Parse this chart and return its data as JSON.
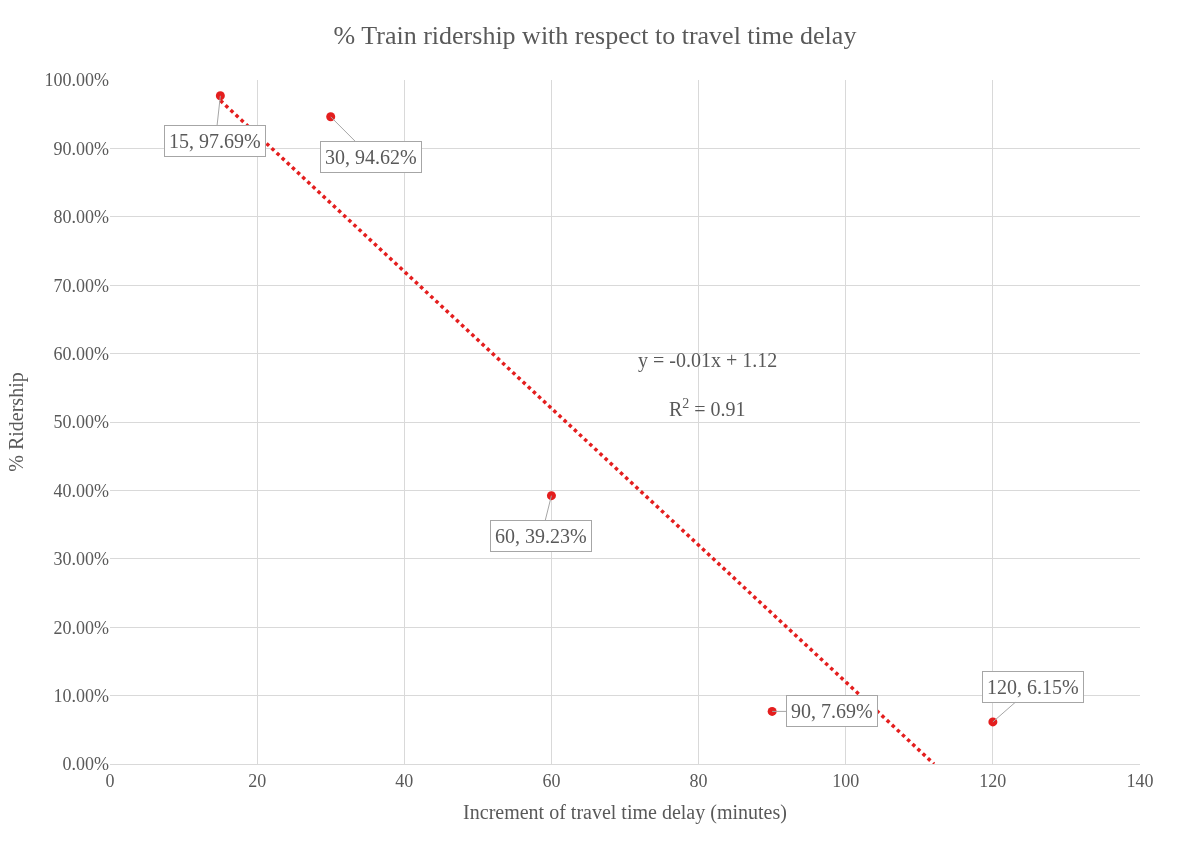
{
  "chart_data": {
    "type": "scatter",
    "title": "% Train ridership with respect to travel time delay",
    "xlabel": "Increment of travel time delay (minutes)",
    "ylabel": "% Ridership",
    "series": [
      {
        "color": "#e41e1e",
        "marker": "circle",
        "x": [
          15,
          30,
          60,
          90,
          120
        ],
        "values": [
          97.69,
          94.62,
          39.23,
          7.69,
          6.15
        ],
        "value_labels": [
          "15, 97.69%",
          "30, 94.62%",
          "60, 39.23%",
          "90, 7.69%",
          "120, 6.15%"
        ]
      },
      {
        "type": "line",
        "color": "#e41e1e",
        "line_style": "dotted",
        "marker": "none",
        "x": [
          15,
          112
        ],
        "values": [
          97.0,
          0
        ]
      }
    ],
    "annotations": [
      "y = -0.01x + 1.12",
      "R$^{2}$ = 0.91"
    ],
    "xlim": [
      0,
      140
    ],
    "xticks": [
      0,
      20,
      40,
      60,
      80,
      100,
      120,
      140
    ],
    "ylim": [
      0,
      100
    ],
    "yticks": [
      {
        "value": 0,
        "label": "0.00%"
      },
      {
        "value": 10,
        "label": "10.00%"
      },
      {
        "value": 20,
        "label": "20.00%"
      },
      {
        "value": 30,
        "label": "30.00%"
      },
      {
        "value": 40,
        "label": "40.00%"
      },
      {
        "value": 50,
        "label": "50.00%"
      },
      {
        "value": 60,
        "label": "60.00%"
      },
      {
        "value": 70,
        "label": "70.00%"
      },
      {
        "value": 80,
        "label": "80.00%"
      },
      {
        "value": 90,
        "label": "90.00%"
      },
      {
        "value": 100,
        "label": "100.00%"
      }
    ],
    "grid": true
  }
}
